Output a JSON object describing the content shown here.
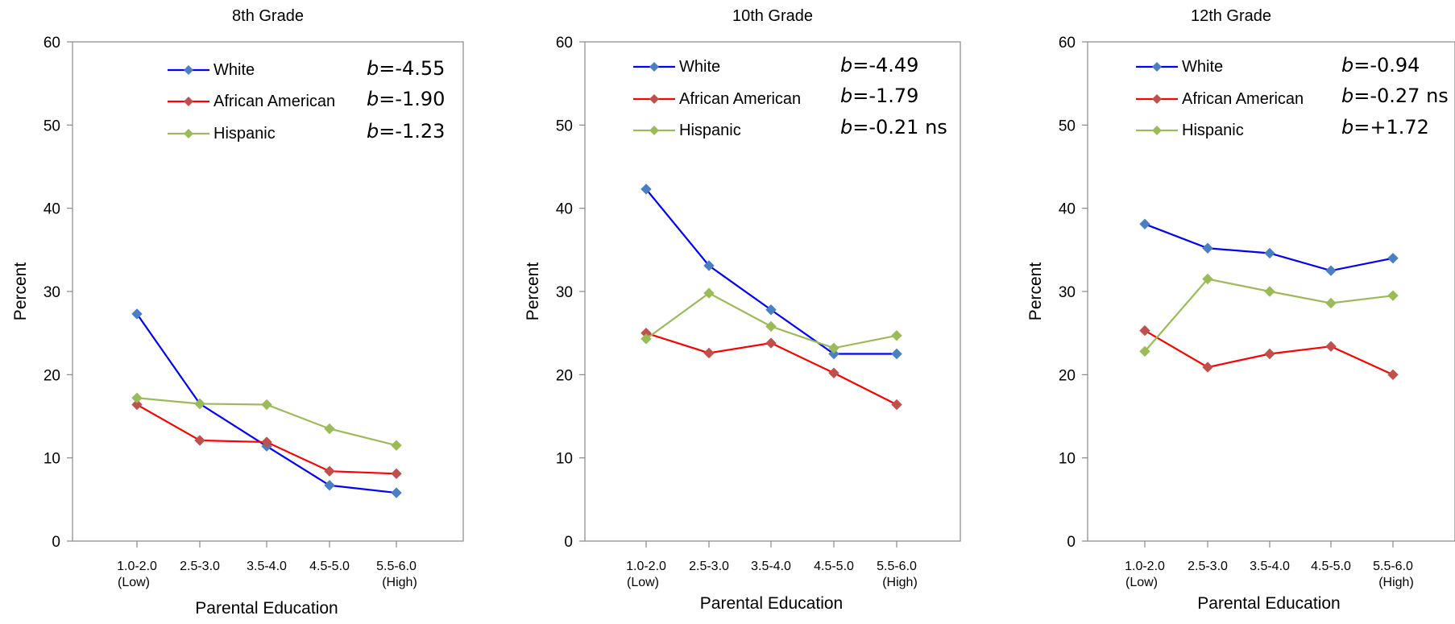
{
  "chart_data": [
    {
      "type": "line",
      "title": "8th Grade",
      "xlabel": "Parental Education",
      "ylabel": "Percent",
      "ylim": [
        0,
        60
      ],
      "yticks": [
        "0",
        "10",
        "20",
        "30",
        "40",
        "50",
        "60"
      ],
      "categories": [
        {
          "line1": "1.0-2.0",
          "line2": "(Low)"
        },
        {
          "line1": "2.5-3.0",
          "line2": ""
        },
        {
          "line1": "3.5-4.0",
          "line2": ""
        },
        {
          "line1": "4.5-5.0",
          "line2": ""
        },
        {
          "line1": "5.5-6.0",
          "line2": "(High)"
        }
      ],
      "legend_placement": "top",
      "series": [
        {
          "name": "White",
          "color": "#0000ff",
          "marker_color": "#4a7fc1",
          "values": [
            27.3,
            16.5,
            11.4,
            6.7,
            5.8
          ],
          "stat_prefix": "b",
          "stat_value": "=-4.55"
        },
        {
          "name": "African American",
          "color": "#ff0000",
          "marker_color": "#c0504d",
          "values": [
            16.4,
            12.1,
            11.9,
            8.4,
            8.1
          ],
          "stat_prefix": "b",
          "stat_value": "=-1.90"
        },
        {
          "name": "Hispanic",
          "color": "#9bbb59",
          "marker_color": "#9bbb59",
          "values": [
            17.2,
            16.5,
            16.4,
            13.5,
            11.5
          ],
          "stat_prefix": "b",
          "stat_value": "=-1.23"
        }
      ]
    },
    {
      "type": "line",
      "title": "10th Grade",
      "xlabel": "Parental Education",
      "ylabel": "Percent",
      "ylim": [
        0,
        60
      ],
      "yticks": [
        "0",
        "10",
        "20",
        "30",
        "40",
        "50",
        "60"
      ],
      "categories": [
        {
          "line1": "1.0-2.0",
          "line2": "(Low)"
        },
        {
          "line1": "2.5-3.0",
          "line2": ""
        },
        {
          "line1": "3.5-4.0",
          "line2": ""
        },
        {
          "line1": "4.5-5.0",
          "line2": ""
        },
        {
          "line1": "5.5-6.0",
          "line2": "(High)"
        }
      ],
      "legend_placement": "top",
      "series": [
        {
          "name": "White",
          "color": "#0000ff",
          "marker_color": "#4a7fc1",
          "values": [
            42.3,
            33.1,
            27.8,
            22.5,
            22.5
          ],
          "stat_prefix": "b",
          "stat_value": "=-4.49"
        },
        {
          "name": "African American",
          "color": "#ff0000",
          "marker_color": "#c0504d",
          "values": [
            25.0,
            22.6,
            23.8,
            20.2,
            16.4
          ],
          "stat_prefix": "b",
          "stat_value": "=-1.79"
        },
        {
          "name": "Hispanic",
          "color": "#9bbb59",
          "marker_color": "#9bbb59",
          "values": [
            24.3,
            29.8,
            25.8,
            23.2,
            24.7
          ],
          "stat_prefix": "b",
          "stat_value": "=-0.21 ns"
        }
      ]
    },
    {
      "type": "line",
      "title": "12th Grade",
      "xlabel": "Parental Education",
      "ylabel": "Percent",
      "ylim": [
        0,
        60
      ],
      "yticks": [
        "0",
        "10",
        "20",
        "30",
        "40",
        "50",
        "60"
      ],
      "categories": [
        {
          "line1": "1.0-2.0",
          "line2": "(Low)"
        },
        {
          "line1": "2.5-3.0",
          "line2": ""
        },
        {
          "line1": "3.5-4.0",
          "line2": ""
        },
        {
          "line1": "4.5-5.0",
          "line2": ""
        },
        {
          "line1": "5.5-6.0",
          "line2": "(High)"
        }
      ],
      "legend_placement": "top",
      "series": [
        {
          "name": "White",
          "color": "#0000ff",
          "marker_color": "#4a7fc1",
          "values": [
            38.1,
            35.2,
            34.6,
            32.5,
            34.0
          ],
          "stat_prefix": "b",
          "stat_value": "=-0.94"
        },
        {
          "name": "African American",
          "color": "#ff0000",
          "marker_color": "#c0504d",
          "values": [
            25.3,
            20.9,
            22.5,
            23.4,
            20.0
          ],
          "stat_prefix": "b",
          "stat_value": "=-0.27 ns"
        },
        {
          "name": "Hispanic",
          "color": "#9bbb59",
          "marker_color": "#9bbb59",
          "values": [
            22.8,
            31.5,
            30.0,
            28.6,
            29.5
          ],
          "stat_prefix": "b",
          "stat_value": "=+1.72"
        }
      ]
    }
  ]
}
